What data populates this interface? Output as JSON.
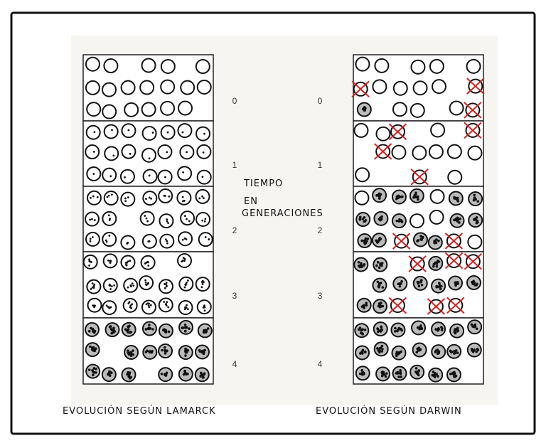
{
  "columns": [
    {
      "caption": "EVOLUCIÓN SEGÚN LAMARCK",
      "generations": [
        "0",
        "1",
        "2",
        "3",
        "4"
      ]
    },
    {
      "caption": "EVOLUCIÓN SEGÚN DARWIN",
      "generations": [
        "0",
        "1",
        "2",
        "3",
        "4"
      ]
    }
  ],
  "center_label": [
    "TIEMPO",
    "EN",
    "GENERACIONES"
  ]
}
